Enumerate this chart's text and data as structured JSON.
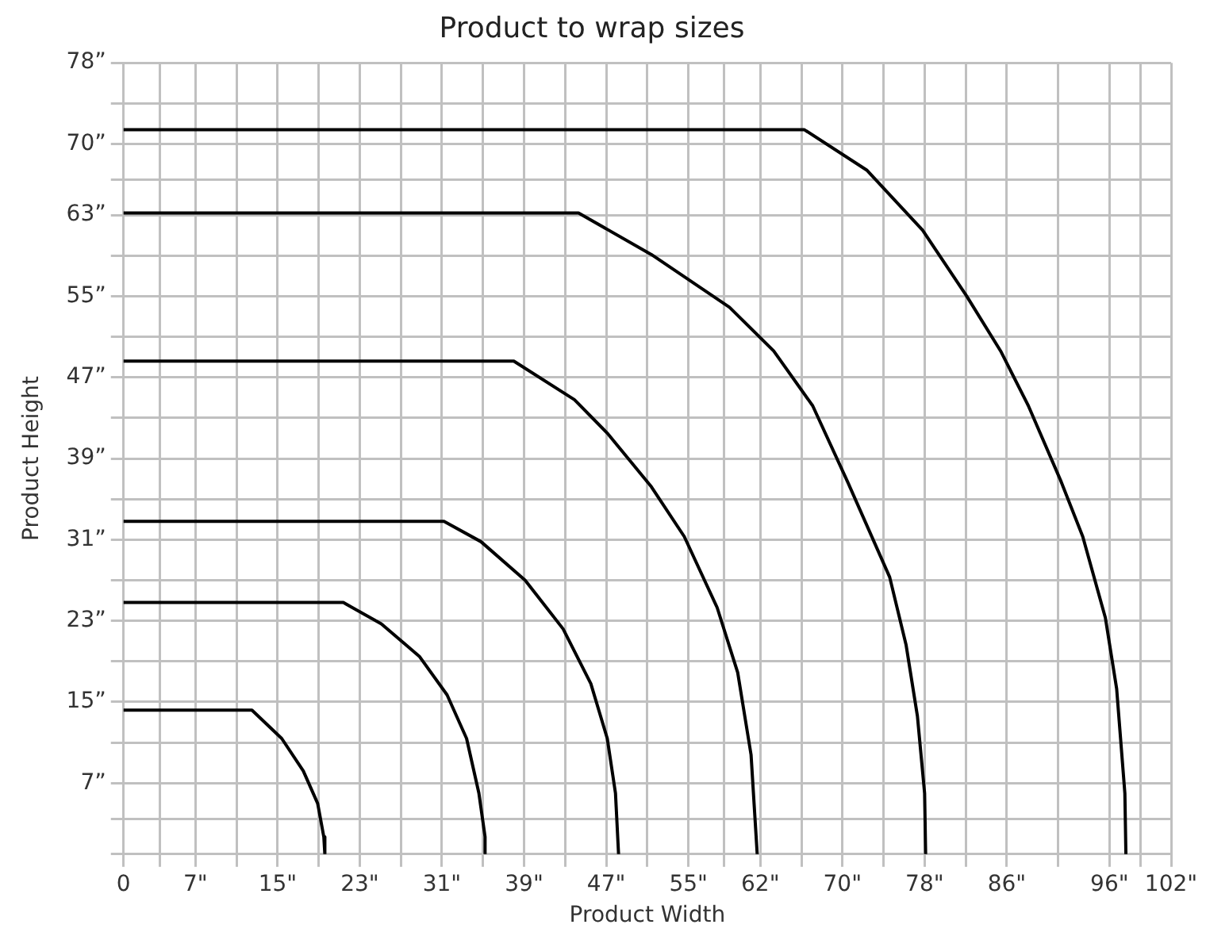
{
  "chart_data": {
    "type": "line",
    "title": "Product to wrap sizes",
    "xlabel": "Product Width",
    "ylabel": "Product Height",
    "xlim": [
      0,
      102
    ],
    "ylim": [
      0,
      78
    ],
    "xticks": [
      {
        "value": 0,
        "label": "0"
      },
      {
        "value": 3.5,
        "label": null
      },
      {
        "value": 7,
        "label": "7\""
      },
      {
        "value": 11,
        "label": null
      },
      {
        "value": 15,
        "label": "15\""
      },
      {
        "value": 19,
        "label": null
      },
      {
        "value": 23,
        "label": "23\""
      },
      {
        "value": 27,
        "label": null
      },
      {
        "value": 31,
        "label": "31\""
      },
      {
        "value": 35,
        "label": null
      },
      {
        "value": 39,
        "label": "39\""
      },
      {
        "value": 43,
        "label": null
      },
      {
        "value": 47,
        "label": "47\""
      },
      {
        "value": 51,
        "label": null
      },
      {
        "value": 55,
        "label": "55\""
      },
      {
        "value": 58.5,
        "label": null
      },
      {
        "value": 62,
        "label": "62\""
      },
      {
        "value": 66,
        "label": null
      },
      {
        "value": 70,
        "label": "70\""
      },
      {
        "value": 74,
        "label": null
      },
      {
        "value": 78,
        "label": "78\""
      },
      {
        "value": 82,
        "label": null
      },
      {
        "value": 86,
        "label": "86\""
      },
      {
        "value": 91,
        "label": null
      },
      {
        "value": 96,
        "label": "96\""
      },
      {
        "value": 99,
        "label": null
      },
      {
        "value": 102,
        "label": "102\""
      }
    ],
    "yticks": [
      {
        "value": 0,
        "label": null
      },
      {
        "value": 3.5,
        "label": null
      },
      {
        "value": 7,
        "label": "7”"
      },
      {
        "value": 11,
        "label": null
      },
      {
        "value": 15,
        "label": "15”"
      },
      {
        "value": 19,
        "label": null
      },
      {
        "value": 23,
        "label": "23”"
      },
      {
        "value": 27,
        "label": null
      },
      {
        "value": 31,
        "label": "31”"
      },
      {
        "value": 35,
        "label": null
      },
      {
        "value": 39,
        "label": "39”"
      },
      {
        "value": 43,
        "label": null
      },
      {
        "value": 47,
        "label": "47”"
      },
      {
        "value": 51,
        "label": null
      },
      {
        "value": 55,
        "label": "55”"
      },
      {
        "value": 59,
        "label": null
      },
      {
        "value": 63,
        "label": "63”"
      },
      {
        "value": 66.5,
        "label": null
      },
      {
        "value": 70,
        "label": "70”"
      },
      {
        "value": 74,
        "label": null
      },
      {
        "value": 78,
        "label": "78”"
      }
    ],
    "grid": true,
    "legend": false,
    "marker": "none",
    "line_style": "solid",
    "series": [
      {
        "color": "#000000",
        "x": [
          0,
          12.5,
          15.4,
          17.5,
          18.9,
          19.5,
          19.6
        ],
        "values": [
          14.2,
          14.2,
          11.4,
          8.2,
          5.0,
          1.7,
          0
        ]
      },
      {
        "color": "#000000",
        "x": [
          0,
          21.4,
          25.1,
          28.8,
          31.5,
          33.4,
          34.6,
          35.2,
          35.2
        ],
        "values": [
          24.8,
          24.8,
          22.7,
          19.5,
          15.7,
          11.4,
          6.0,
          1.7,
          0
        ]
      },
      {
        "color": "#000000",
        "x": [
          0,
          31.2,
          34.8,
          39.1,
          42.8,
          45.5,
          47.1,
          47.9,
          48.2
        ],
        "values": [
          32.8,
          32.8,
          30.8,
          27.0,
          22.2,
          16.8,
          11.4,
          6.0,
          0
        ]
      },
      {
        "color": "#000000",
        "x": [
          0,
          38.0,
          43.9,
          47.1,
          51.4,
          54.6,
          57.8,
          59.8,
          61.1,
          61.7
        ],
        "values": [
          48.6,
          48.6,
          44.8,
          41.5,
          36.2,
          31.3,
          24.3,
          17.9,
          9.8,
          0
        ]
      },
      {
        "color": "#000000",
        "x": [
          0,
          44.3,
          51.4,
          59.0,
          63.3,
          67.1,
          70.5,
          74.6,
          76.2,
          77.3,
          78.0,
          78.1
        ],
        "values": [
          63.2,
          63.2,
          59.1,
          53.9,
          49.6,
          44.2,
          36.7,
          27.3,
          20.6,
          13.6,
          6.0,
          0
        ]
      },
      {
        "color": "#000000",
        "x": [
          0,
          66.3,
          72.4,
          77.8,
          82.1,
          85.4,
          88.1,
          91.3,
          93.4,
          95.6,
          96.7,
          97.5,
          97.6
        ],
        "values": [
          71.4,
          71.4,
          67.4,
          61.5,
          55.0,
          49.6,
          44.2,
          36.7,
          31.3,
          23.3,
          16.3,
          6.0,
          0
        ]
      }
    ]
  }
}
